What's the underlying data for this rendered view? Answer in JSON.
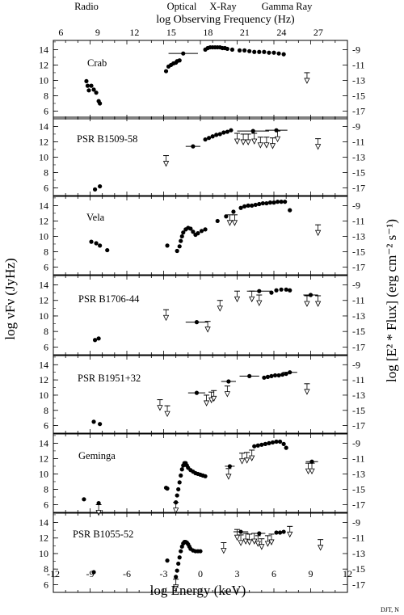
{
  "figure": {
    "top_axis_label": "log Observing Frequency (Hz)",
    "bottom_axis_label": "log Energy (keV)",
    "left_axis_label": "log νFν (JyHz)",
    "right_axis_label": "log [E² * Flux] (erg cm⁻² s⁻¹)",
    "credit": "DJT, N",
    "bands": [
      "Radio",
      "Optical",
      "X-Ray",
      "Gamma Ray"
    ],
    "top_ticks": [
      "6",
      "9",
      "12",
      "15",
      "18",
      "21",
      "24",
      "27"
    ],
    "bottom_ticks": [
      "-12",
      "-9",
      "-6",
      "-3",
      "0",
      "3",
      "6",
      "9",
      "12"
    ],
    "left_ticks": [
      "6",
      "8",
      "10",
      "12",
      "14"
    ],
    "right_ticks": [
      "-9",
      "-11",
      "-13",
      "-15",
      "-17"
    ]
  },
  "chart_data": [
    {
      "type": "scatter",
      "name": "Crab",
      "xlim": [
        -12,
        12
      ],
      "ylim": [
        5,
        15.2
      ],
      "points": [
        [
          -9.3,
          9.9
        ],
        [
          -9.2,
          9.3
        ],
        [
          -9.1,
          8.7
        ],
        [
          -8.9,
          9.3
        ],
        [
          -8.7,
          8.8
        ],
        [
          -8.5,
          8.4
        ],
        [
          -8.3,
          7.3
        ],
        [
          -8.2,
          7.0
        ],
        [
          -2.8,
          11.2
        ],
        [
          -2.6,
          11.8
        ],
        [
          -2.4,
          12.0
        ],
        [
          -2.2,
          12.2
        ],
        [
          -2.0,
          12.3
        ],
        [
          -1.9,
          12.5
        ],
        [
          -1.7,
          12.6
        ],
        [
          0.4,
          14.0
        ],
        [
          0.6,
          14.2
        ],
        [
          0.8,
          14.3
        ],
        [
          1.0,
          14.3
        ],
        [
          1.2,
          14.3
        ],
        [
          1.4,
          14.3
        ],
        [
          1.6,
          14.3
        ],
        [
          1.8,
          14.2
        ],
        [
          2.0,
          14.2
        ],
        [
          2.2,
          14.1
        ],
        [
          2.6,
          14.0
        ],
        [
          3.2,
          13.9
        ],
        [
          3.6,
          13.9
        ],
        [
          4.0,
          13.8
        ],
        [
          4.4,
          13.7
        ],
        [
          4.8,
          13.7
        ],
        [
          5.2,
          13.7
        ],
        [
          5.6,
          13.6
        ],
        [
          6.0,
          13.6
        ],
        [
          6.4,
          13.5
        ],
        [
          6.8,
          13.4
        ]
      ],
      "error_points": [
        [
          -1.4,
          13.5,
          1.2
        ]
      ],
      "upper_limits": [
        [
          8.7,
          11.0
        ]
      ]
    },
    {
      "type": "scatter",
      "name": "PSR B1509-58",
      "xlim": [
        -12,
        12
      ],
      "ylim": [
        5,
        15.2
      ],
      "points": [
        [
          -8.6,
          5.8
        ],
        [
          -8.2,
          6.2
        ],
        [
          0.4,
          12.3
        ],
        [
          0.7,
          12.5
        ],
        [
          1.0,
          12.7
        ],
        [
          1.3,
          12.9
        ],
        [
          1.6,
          13.0
        ],
        [
          1.9,
          13.2
        ],
        [
          2.2,
          13.3
        ],
        [
          2.5,
          13.5
        ]
      ],
      "error_points": [
        [
          -0.6,
          11.4,
          0.6
        ],
        [
          4.3,
          13.4,
          1.3
        ],
        [
          6.2,
          13.5,
          0.9
        ]
      ],
      "upper_limits": [
        [
          -2.8,
          10.2
        ],
        [
          3.0,
          13.1
        ],
        [
          3.5,
          13.0
        ],
        [
          3.9,
          13.0
        ],
        [
          4.4,
          13.1
        ],
        [
          4.9,
          12.6
        ],
        [
          5.4,
          12.6
        ],
        [
          5.9,
          12.5
        ],
        [
          6.3,
          13.4
        ],
        [
          9.6,
          12.4
        ]
      ]
    },
    {
      "type": "scatter",
      "name": "Vela",
      "xlim": [
        -12,
        12
      ],
      "ylim": [
        5,
        15.2
      ],
      "points": [
        [
          -8.9,
          9.3
        ],
        [
          -8.5,
          9.1
        ],
        [
          -8.2,
          8.8
        ],
        [
          -7.6,
          8.2
        ],
        [
          -2.7,
          8.8
        ],
        [
          -1.9,
          8.1
        ],
        [
          -1.7,
          8.7
        ],
        [
          -1.6,
          9.4
        ],
        [
          -1.5,
          10.0
        ],
        [
          -1.4,
          10.5
        ],
        [
          -1.2,
          10.9
        ],
        [
          -1.0,
          11.1
        ],
        [
          -0.8,
          11.0
        ],
        [
          -0.6,
          10.6
        ],
        [
          -0.4,
          10.2
        ],
        [
          -0.2,
          10.4
        ],
        [
          0.1,
          10.7
        ],
        [
          0.4,
          10.9
        ],
        [
          1.4,
          12.0
        ],
        [
          2.1,
          12.6
        ],
        [
          2.7,
          13.2
        ],
        [
          3.3,
          13.7
        ],
        [
          3.6,
          13.9
        ],
        [
          3.9,
          14.0
        ],
        [
          4.2,
          14.0
        ],
        [
          4.5,
          14.1
        ],
        [
          4.8,
          14.2
        ],
        [
          5.1,
          14.3
        ],
        [
          5.4,
          14.3
        ],
        [
          5.7,
          14.4
        ],
        [
          6.0,
          14.4
        ],
        [
          6.3,
          14.5
        ],
        [
          6.6,
          14.5
        ],
        [
          6.9,
          14.5
        ],
        [
          7.3,
          13.4
        ]
      ],
      "error_points": [],
      "upper_limits": [
        [
          2.4,
          12.8
        ],
        [
          2.8,
          12.8
        ],
        [
          9.6,
          11.5
        ]
      ]
    },
    {
      "type": "scatter",
      "name": "PSR B1706-44",
      "xlim": [
        -12,
        12
      ],
      "ylim": [
        5,
        15.2
      ],
      "points": [
        [
          -8.6,
          6.9
        ],
        [
          -8.3,
          7.1
        ],
        [
          5.8,
          13.0
        ],
        [
          6.2,
          13.3
        ],
        [
          6.6,
          13.4
        ],
        [
          7.0,
          13.4
        ],
        [
          7.3,
          13.3
        ]
      ],
      "error_points": [
        [
          -0.3,
          9.2,
          0.9
        ],
        [
          4.8,
          13.2,
          1.0
        ],
        [
          9.0,
          12.7,
          0.6
        ]
      ],
      "upper_limits": [
        [
          -2.8,
          10.8
        ],
        [
          0.6,
          9.3
        ],
        [
          1.6,
          12.0
        ],
        [
          3.0,
          13.2
        ],
        [
          4.2,
          13.2
        ],
        [
          4.8,
          12.7
        ],
        [
          8.7,
          12.6
        ],
        [
          9.6,
          12.6
        ]
      ]
    },
    {
      "type": "scatter",
      "name": "PSR B1951+32",
      "xlim": [
        -12,
        12
      ],
      "ylim": [
        5,
        15.2
      ],
      "points": [
        [
          -8.7,
          6.5
        ],
        [
          -8.2,
          6.2
        ],
        [
          5.2,
          12.3
        ],
        [
          5.5,
          12.4
        ],
        [
          5.8,
          12.5
        ],
        [
          6.1,
          12.6
        ],
        [
          6.4,
          12.6
        ],
        [
          6.7,
          12.7
        ],
        [
          7.0,
          12.8
        ]
      ],
      "error_points": [
        [
          -0.3,
          10.3,
          0.7
        ],
        [
          2.3,
          11.8,
          0.6
        ],
        [
          4.0,
          12.5,
          0.8
        ],
        [
          7.3,
          13.0,
          0.6
        ]
      ],
      "upper_limits": [
        [
          -3.3,
          9.4
        ],
        [
          -2.7,
          8.6
        ],
        [
          0.5,
          10.0
        ],
        [
          0.9,
          10.4
        ],
        [
          1.1,
          10.6
        ],
        [
          2.2,
          11.2
        ],
        [
          8.7,
          11.5
        ]
      ]
    },
    {
      "type": "scatter",
      "name": "Geminga",
      "xlim": [
        -12,
        12
      ],
      "ylim": [
        5,
        15.2
      ],
      "points": [
        [
          -9.5,
          6.7
        ],
        [
          -8.3,
          6.2
        ],
        [
          -2.8,
          8.2
        ],
        [
          -2.7,
          8.1
        ],
        [
          -2.0,
          6.3
        ],
        [
          -1.9,
          7.2
        ],
        [
          -1.8,
          8.0
        ],
        [
          -1.7,
          8.9
        ],
        [
          -1.6,
          9.8
        ],
        [
          -1.5,
          10.6
        ],
        [
          -1.4,
          11.1
        ],
        [
          -1.3,
          11.4
        ],
        [
          -1.2,
          11.4
        ],
        [
          -1.1,
          11.1
        ],
        [
          -1.0,
          10.8
        ],
        [
          -0.8,
          10.5
        ],
        [
          -0.6,
          10.3
        ],
        [
          -0.4,
          10.1
        ],
        [
          -0.2,
          10.0
        ],
        [
          0.0,
          9.9
        ],
        [
          0.2,
          9.8
        ],
        [
          0.4,
          9.7
        ],
        [
          4.4,
          13.6
        ],
        [
          4.7,
          13.7
        ],
        [
          5.0,
          13.8
        ],
        [
          5.3,
          13.9
        ],
        [
          5.6,
          14.0
        ],
        [
          5.9,
          14.1
        ],
        [
          6.2,
          14.2
        ],
        [
          6.5,
          14.2
        ],
        [
          6.8,
          13.9
        ],
        [
          7.0,
          13.4
        ]
      ],
      "error_points": [
        [
          2.4,
          11.0,
          0.4
        ],
        [
          9.1,
          11.6,
          0.5
        ]
      ],
      "upper_limits": [
        [
          -8.3,
          6.0
        ],
        [
          -2.0,
          6.3
        ],
        [
          2.3,
          10.7
        ],
        [
          3.4,
          12.7
        ],
        [
          3.8,
          12.8
        ],
        [
          4.2,
          13.1
        ],
        [
          8.8,
          11.4
        ],
        [
          9.1,
          11.4
        ]
      ]
    },
    {
      "type": "scatter",
      "name": "PSR B1055-52",
      "xlim": [
        -12,
        12
      ],
      "ylim": [
        5,
        15.2
      ],
      "points": [
        [
          -8.7,
          7.6
        ],
        [
          -2.7,
          9.1
        ],
        [
          -2.0,
          7.0
        ],
        [
          -1.9,
          7.8
        ],
        [
          -1.8,
          8.7
        ],
        [
          -1.7,
          9.5
        ],
        [
          -1.6,
          10.3
        ],
        [
          -1.5,
          10.9
        ],
        [
          -1.4,
          11.3
        ],
        [
          -1.3,
          11.5
        ],
        [
          -1.2,
          11.5
        ],
        [
          -1.1,
          11.4
        ],
        [
          -1.0,
          11.2
        ],
        [
          -0.9,
          10.9
        ],
        [
          -0.8,
          10.6
        ],
        [
          -0.6,
          10.4
        ],
        [
          -0.4,
          10.3
        ],
        [
          -0.2,
          10.3
        ],
        [
          0.0,
          10.3
        ],
        [
          6.2,
          12.7
        ],
        [
          6.5,
          12.7
        ],
        [
          6.8,
          12.8
        ]
      ],
      "error_points": [
        [
          3.3,
          12.8,
          0.6
        ],
        [
          4.8,
          12.6,
          0.5
        ]
      ],
      "upper_limits": [
        [
          -2.0,
          6.7
        ],
        [
          1.9,
          11.4
        ],
        [
          3.0,
          13.1
        ],
        [
          3.3,
          12.4
        ],
        [
          3.7,
          12.6
        ],
        [
          4.0,
          12.5
        ],
        [
          4.4,
          12.6
        ],
        [
          4.7,
          12.3
        ],
        [
          5.0,
          11.9
        ],
        [
          5.5,
          12.3
        ],
        [
          5.8,
          12.5
        ],
        [
          7.3,
          13.5
        ],
        [
          9.8,
          11.8
        ]
      ]
    }
  ]
}
